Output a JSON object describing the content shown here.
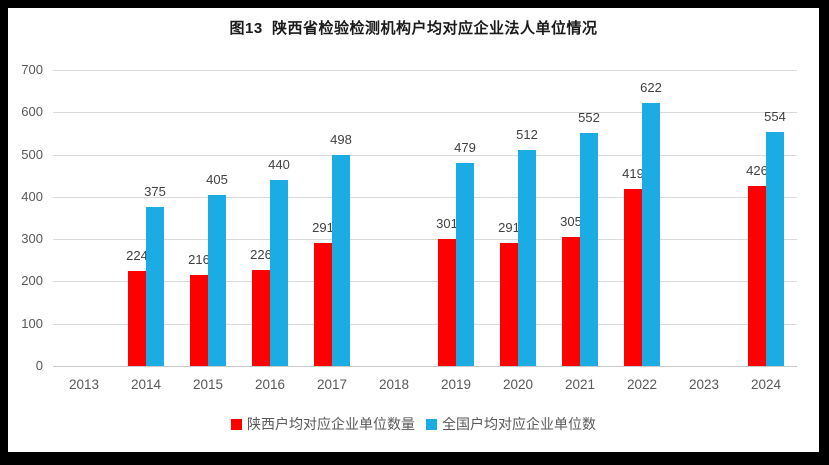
{
  "frame": {
    "background": "#ffffff",
    "border_color": "#000000"
  },
  "chart_data": {
    "type": "bar",
    "title": "图13  陕西省检验检测机构户均对应企业法人单位情况",
    "categories": [
      "2013",
      "2014",
      "2015",
      "2016",
      "2017",
      "2018",
      "2019",
      "2020",
      "2021",
      "2022",
      "2023",
      "2024"
    ],
    "series": [
      {
        "key": "shaanxi",
        "name": "陕西户均对应企业单位数量",
        "color": "#ff0000",
        "values": [
          null,
          224,
          216,
          226,
          291,
          null,
          301,
          291,
          305,
          419,
          null,
          426
        ]
      },
      {
        "key": "national",
        "name": "全国户均对应企业单位数",
        "color": "#1cace4",
        "values": [
          null,
          375,
          405,
          440,
          498,
          null,
          479,
          512,
          552,
          622,
          null,
          554
        ]
      }
    ],
    "ylim": [
      0,
      700
    ],
    "ytick_interval": 100,
    "yticks": [
      0,
      100,
      200,
      300,
      400,
      500,
      600,
      700
    ],
    "grid": "horizontal",
    "legend_position": "bottom",
    "data_labels": true,
    "colors": {
      "gridline": "#d9d9d9",
      "axis_line": "#c9c9c9",
      "axis_label": "#595959",
      "data_label": "#404040",
      "title": "#1a1a1a"
    }
  }
}
